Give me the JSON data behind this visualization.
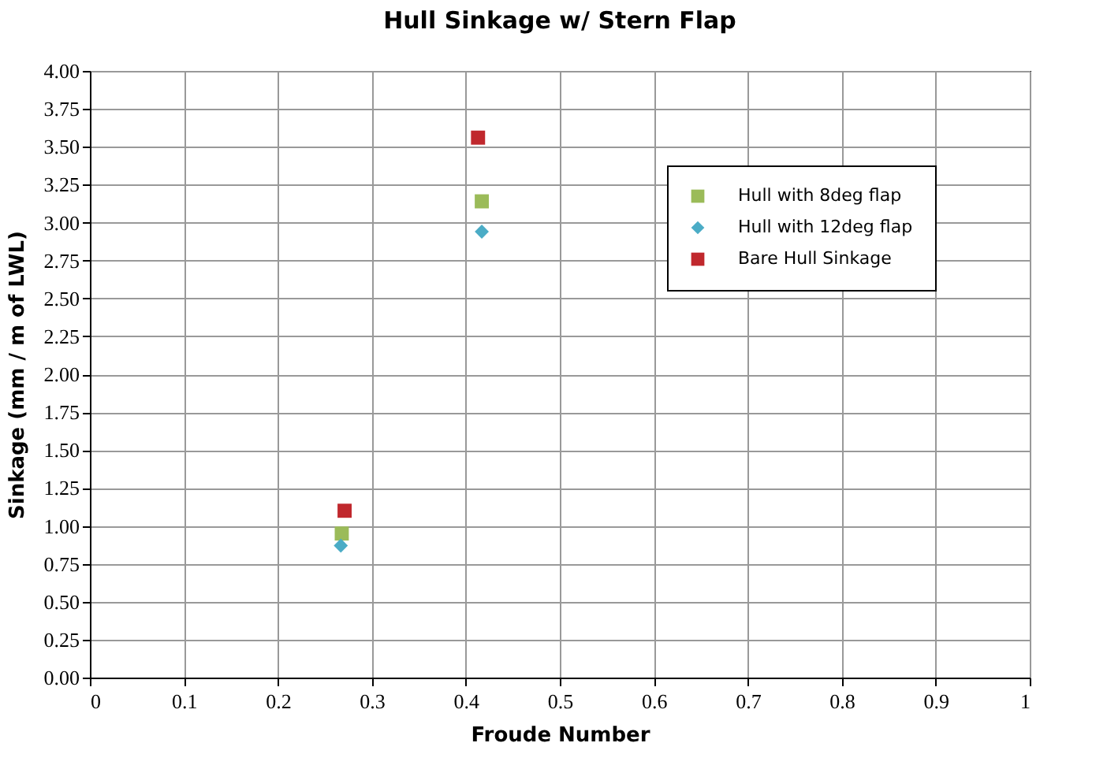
{
  "chart_data": {
    "type": "scatter",
    "title": "Hull Sinkage w/ Stern Flap",
    "xlabel": "Froude Number",
    "ylabel": "Sinkage (mm / m of LWL)",
    "series": [
      {
        "name": "Hull with 8deg flap",
        "color": "#9bbb59",
        "marker": "square",
        "x": [
          0.268,
          0.417
        ],
        "values": [
          0.95,
          3.14
        ]
      },
      {
        "name": "Hull with 12deg flap",
        "color": "#4bacc6",
        "marker": "diamond",
        "x": [
          0.267,
          0.417
        ],
        "values": [
          0.87,
          2.94
        ]
      },
      {
        "name": "Bare Hull Sinkage",
        "color": "#c0282d",
        "marker": "square",
        "x": [
          0.271,
          0.413
        ],
        "values": [
          1.1,
          3.56
        ]
      }
    ],
    "xlim": [
      0,
      1
    ],
    "xticks": [
      0,
      0.1,
      0.2,
      0.3,
      0.4,
      0.5,
      0.6,
      0.7,
      0.8,
      0.9,
      1
    ],
    "ylim": [
      0,
      4
    ],
    "yticks": [
      {
        "value": 0,
        "label": "0.00"
      },
      {
        "value": 0.25,
        "label": "0.25"
      },
      {
        "value": 0.5,
        "label": "0.50"
      },
      {
        "value": 0.75,
        "label": "0.75"
      },
      {
        "value": 1,
        "label": "1.00"
      },
      {
        "value": 1.25,
        "label": "1.25"
      },
      {
        "value": 1.5,
        "label": "1.50"
      },
      {
        "value": 1.75,
        "label": "1.75"
      },
      {
        "value": 2,
        "label": "2.00"
      },
      {
        "value": 2.25,
        "label": "2.25"
      },
      {
        "value": 2.5,
        "label": "2.50"
      },
      {
        "value": 2.75,
        "label": "2.75"
      },
      {
        "value": 3,
        "label": "3.00"
      },
      {
        "value": 3.25,
        "label": "3.25"
      },
      {
        "value": 3.5,
        "label": "3.50"
      },
      {
        "value": 3.75,
        "label": "3.75"
      },
      {
        "value": 4,
        "label": "4.00"
      }
    ],
    "grid": true,
    "legend": "top right"
  }
}
